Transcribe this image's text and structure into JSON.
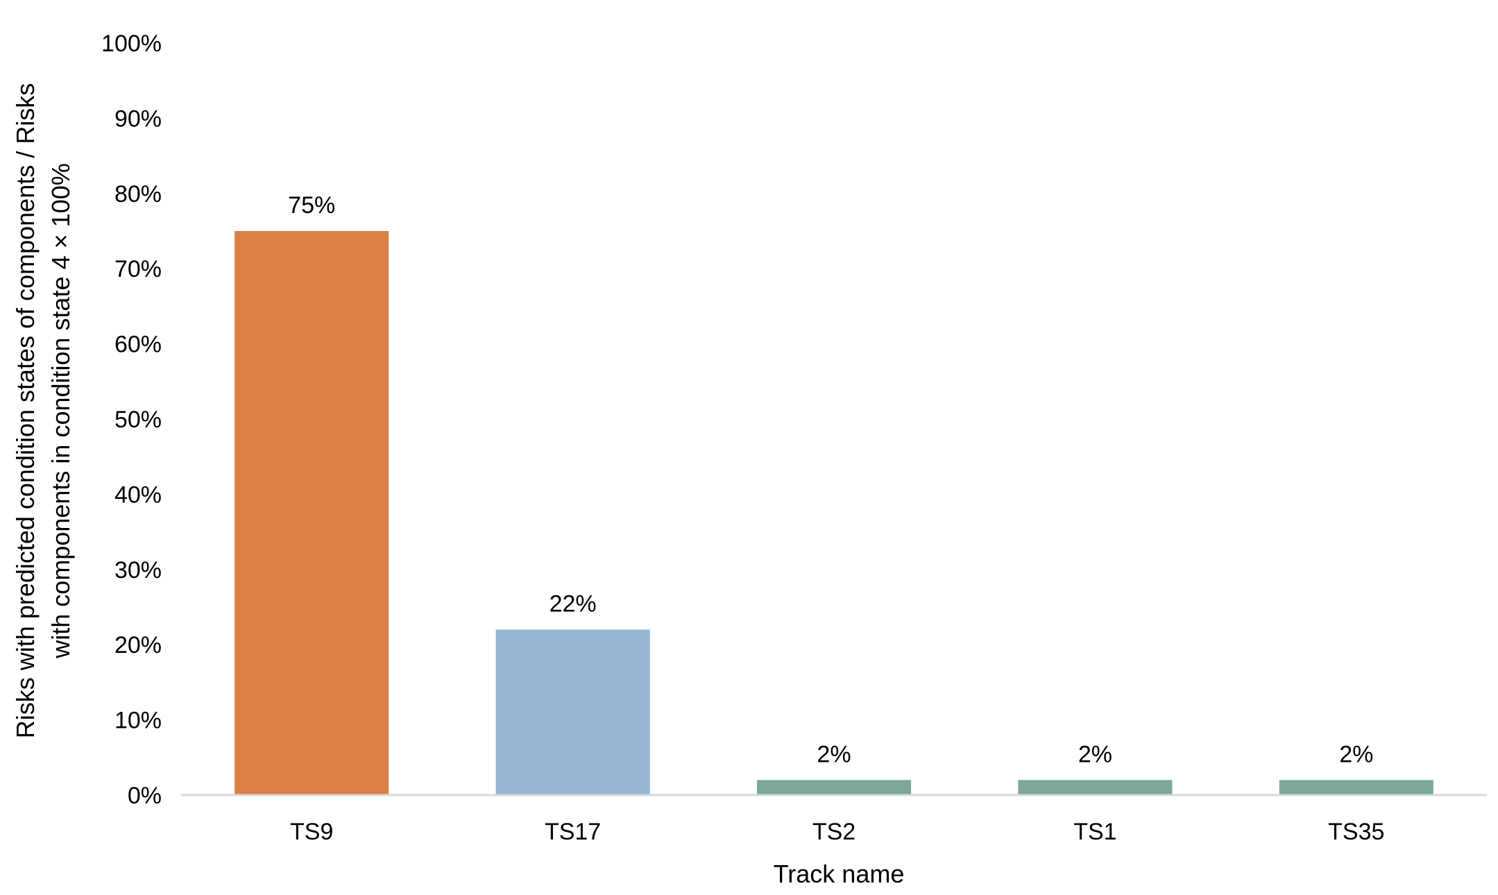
{
  "chart_data": {
    "type": "bar",
    "categories": [
      "TS9",
      "TS17",
      "TS2",
      "TS1",
      "TS35"
    ],
    "values": [
      75,
      22,
      2,
      2,
      2
    ],
    "data_labels": [
      "75%",
      "22%",
      "2%",
      "2%",
      "2%"
    ],
    "bar_colors": [
      "#DD8047",
      "#94B6D2",
      "#7BA79D",
      "#7BA79D",
      "#7BA79D"
    ],
    "title": "",
    "xlabel": "Track name",
    "ylabel_lines": [
      "Risks with predicted condition states of components / Risks",
      "with components in condition state 4 × 100%"
    ],
    "ylim": [
      0,
      100
    ],
    "yticks": [
      0,
      10,
      20,
      30,
      40,
      50,
      60,
      70,
      80,
      90,
      100
    ],
    "ytick_labels": [
      "0%",
      "10%",
      "20%",
      "30%",
      "40%",
      "50%",
      "60%",
      "70%",
      "80%",
      "90%",
      "100%"
    ],
    "grid": false,
    "legend": "none",
    "axis_color": "#D9D9D9"
  }
}
